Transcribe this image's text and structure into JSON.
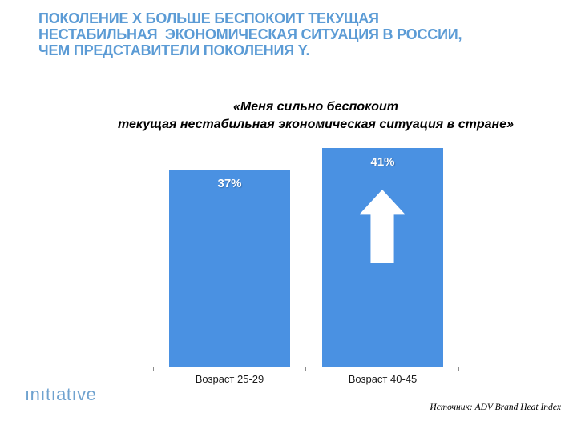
{
  "slide": {
    "title_lines": [
      "ПОКОЛЕНИЕ X БОЛЬШЕ БЕСПОКОИТ ТЕКУЩАЯ",
      "НЕСТАБИЛЬНАЯ  ЭКОНОМИЧЕСКАЯ СИТУАЦИЯ В РОССИИ,",
      "ЧЕМ ПРЕДСТАВИТЕЛИ ПОКОЛЕНИЯ Y."
    ],
    "subtitle_lines": [
      "«Меня сильно беспокоит",
      "текущая нестабильная экономическая ситуация в стране»"
    ],
    "logo_text": "ınıtıatıve",
    "source_text": "Источник: ADV Brand Heat Index"
  },
  "colors": {
    "title_blue": "#5b9bd5",
    "bar_blue": "#4a91e2",
    "logo_blue": "#6fa2cf",
    "axis_gray": "#8c8c8c",
    "value_label_white": "#ffffff"
  },
  "chart_data": {
    "type": "bar",
    "title": "«Меня сильно беспокоит текущая нестабильная экономическая ситуация в стране»",
    "categories": [
      "Возраст 25-29",
      "Возраст 40-45"
    ],
    "values": [
      37,
      41
    ],
    "value_labels": [
      "37%",
      "41%"
    ],
    "unit": "%",
    "ylim": [
      0,
      45
    ],
    "grid": false,
    "legend": false,
    "bar_color": "#4a91e2",
    "arrow_up_on_bar_index": 1
  }
}
